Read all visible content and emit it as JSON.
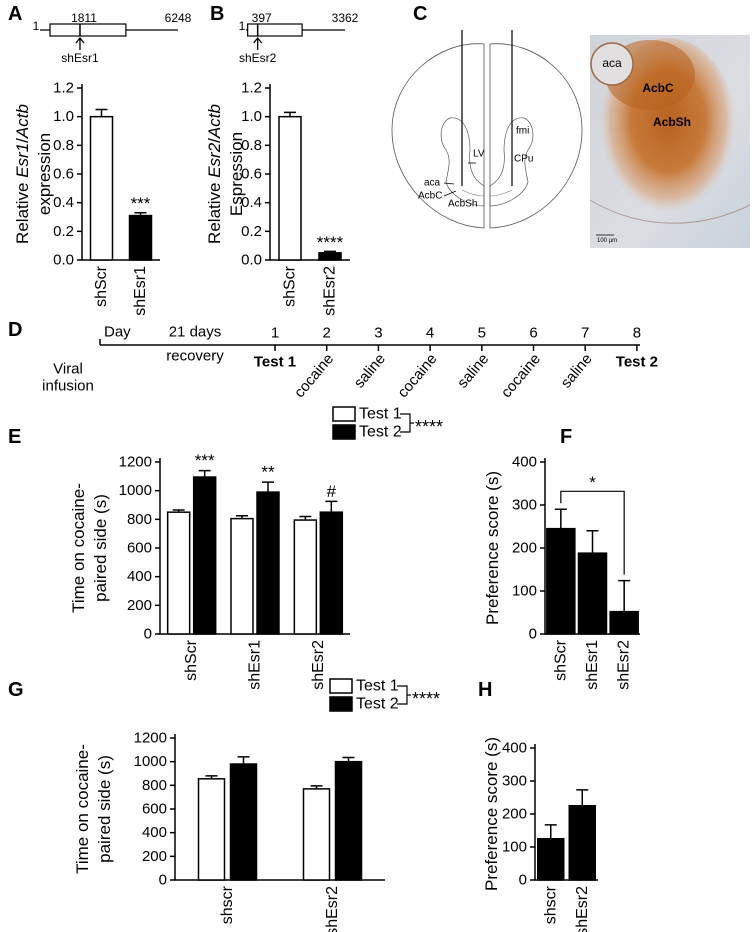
{
  "chart_data": [
    {
      "type": "bar",
      "label": "A",
      "gene_map": {
        "start": 1,
        "site": 1811,
        "end": 6248,
        "shrna": "shEsr1"
      },
      "y_label": [
        [
          "Relative ",
          "Esr1",
          "/",
          "Actb"
        ],
        [
          "expression"
        ]
      ],
      "categories": [
        "shScr",
        "shEsr1"
      ],
      "values": [
        1.0,
        0.31
      ],
      "errors": [
        0.05,
        0.02
      ],
      "colors": [
        "#ffffff",
        "#000000"
      ],
      "annotations": [
        null,
        "***"
      ],
      "ylim": [
        0,
        1.2
      ],
      "yticks": [
        {
          "value": 0,
          "label": "0.0"
        },
        0.2,
        0.4,
        0.6,
        0.8,
        {
          "value": 1,
          "label": "1.0"
        },
        1.2
      ]
    },
    {
      "type": "bar",
      "label": "B",
      "gene_map": {
        "start": 1,
        "site": 397,
        "end": 3362,
        "shrna": "shEsr2"
      },
      "y_label": [
        [
          "Relative ",
          "Esr2",
          "/",
          "Actb"
        ],
        [
          "Espression"
        ]
      ],
      "categories": [
        "shScr",
        "shEsr2"
      ],
      "values": [
        1.0,
        0.05
      ],
      "errors": [
        0.03,
        0.01
      ],
      "colors": [
        "#ffffff",
        "#000000"
      ],
      "annotations": [
        null,
        "****"
      ],
      "ylim": [
        0,
        1.2
      ],
      "yticks": [
        {
          "value": 0,
          "label": "0.0"
        },
        0.2,
        0.4,
        0.6,
        0.8,
        {
          "value": 1,
          "label": "1.0"
        },
        1.2
      ]
    },
    {
      "type": "grouped_bar",
      "label": "E",
      "y_label": [
        [
          "Time on cocaine-"
        ],
        [
          "paired side (s)"
        ]
      ],
      "categories": [
        "shScr",
        "shEsr1",
        "shEsr2"
      ],
      "series": [
        {
          "name": "Test 1",
          "color": "#ffffff",
          "values": [
            850,
            805,
            795
          ],
          "errors": [
            15,
            20,
            25
          ]
        },
        {
          "name": "Test 2",
          "color": "#000000",
          "values": [
            1095,
            990,
            850
          ],
          "errors": [
            45,
            70,
            75
          ],
          "annotations": [
            "***",
            "**",
            "#"
          ]
        }
      ],
      "legend_annotation": "****",
      "ylim": [
        0,
        1200
      ],
      "yticks": [
        0,
        200,
        400,
        600,
        800,
        1000,
        1200
      ]
    },
    {
      "type": "bar",
      "label": "F",
      "y_label": [
        [
          "Preference score (s)"
        ]
      ],
      "categories": [
        "shScr",
        "shEsr1",
        "shEsr2"
      ],
      "values": [
        245,
        188,
        52
      ],
      "errors": [
        45,
        52,
        72
      ],
      "color": "#000000",
      "significance": {
        "between": [
          "shScr",
          "shEsr2"
        ],
        "label": "*"
      },
      "ylim": [
        0,
        400
      ],
      "yticks": [
        0,
        100,
        200,
        300,
        400
      ]
    },
    {
      "type": "grouped_bar",
      "label": "G",
      "y_label": [
        [
          "Time on cocaine-"
        ],
        [
          "paired side (s)"
        ]
      ],
      "categories": [
        "shscr",
        "shEsr2"
      ],
      "series": [
        {
          "name": "Test 1",
          "color": "#ffffff",
          "values": [
            855,
            770
          ],
          "errors": [
            25,
            25
          ]
        },
        {
          "name": "Test 2",
          "color": "#000000",
          "values": [
            980,
            1000
          ],
          "errors": [
            60,
            35
          ]
        }
      ],
      "legend_annotation": "****",
      "ylim": [
        0,
        1200
      ],
      "yticks": [
        0,
        200,
        400,
        600,
        800,
        1000,
        1200
      ]
    },
    {
      "type": "bar",
      "label": "H",
      "y_label": [
        [
          "Preference score (s)"
        ]
      ],
      "categories": [
        "shscr",
        "shEsr2"
      ],
      "values": [
        125,
        225
      ],
      "errors": [
        42,
        48
      ],
      "color": "#000000",
      "ylim": [
        0,
        400
      ],
      "yticks": [
        0,
        100,
        200,
        300,
        400
      ]
    }
  ],
  "diagram": {
    "label": "C",
    "brain_labels": [
      "LV",
      "fmi",
      "CPu",
      "aca",
      "AcbC",
      "AcbSh"
    ],
    "micrograph_labels": [
      "aca",
      "AcbC",
      "AcbSh",
      "100 µm"
    ]
  },
  "timeline": {
    "label": "D",
    "title": "Day",
    "recovery": [
      "21 days",
      "recovery"
    ],
    "infusion": [
      "Viral",
      "infusion"
    ],
    "days": [
      1,
      2,
      3,
      4,
      5,
      6,
      7,
      8
    ],
    "events": [
      "Test 1",
      "cocaine",
      "saline",
      "cocaine",
      "saline",
      "cocaine",
      "saline",
      "Test 2"
    ]
  }
}
